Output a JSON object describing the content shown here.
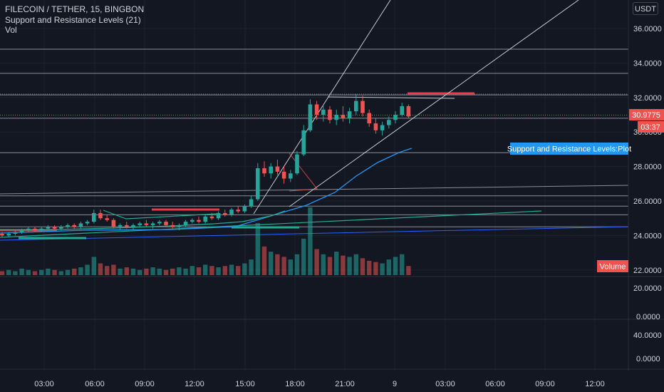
{
  "legend": {
    "symbol": "FILECOIN / TETHER, 15, BINGBON",
    "indicator": "Support and Resistance Levels (21)",
    "volume": "Vol"
  },
  "currency": "USDT",
  "colors": {
    "background": "#131722",
    "up": "#26a69a",
    "down": "#ef5350",
    "grid": "#1e222d",
    "text": "#d1d4dc",
    "level_line": "#b2b5be",
    "trend_line": "#c8cad2",
    "ma_blue": "#2196f3",
    "ma_teal": "#22ab94",
    "resistance_red": "#f23645",
    "support_green": "#4caf50"
  },
  "chart_data": {
    "type": "candlestick",
    "x_tick_labels": [
      "03:00",
      "06:00",
      "09:00",
      "12:00",
      "15:00",
      "18:00",
      "21:00",
      "9",
      "03:00",
      "06:00",
      "09:00",
      "12:00"
    ],
    "price_axis_ticks": [
      "36.0000",
      "34.0000",
      "32.0000",
      "30.0000",
      "28.0000",
      "26.0000",
      "24.0000",
      "22.0000"
    ],
    "oscillator_axis_ticks": [
      "20.0000",
      "0.0000"
    ],
    "oscillator2_axis_ticks": [
      "40.0000",
      "0.0000"
    ],
    "price_range": [
      21.6,
      37.4
    ],
    "last_price": "30.9775",
    "countdown": "03:37",
    "indicator_plot_label": "Support and Resistance Levels:Plot",
    "volume_label": "Volume",
    "horizontal_levels": [
      34.8,
      33.4,
      32.15,
      30.8,
      28.8,
      26.3,
      25.7,
      25.2,
      24.5
    ],
    "candles_ohlc": [
      [
        24.1,
        24.2,
        23.9,
        24.0
      ],
      [
        24.0,
        24.2,
        23.9,
        24.1
      ],
      [
        24.1,
        24.3,
        24.0,
        24.2
      ],
      [
        24.2,
        24.4,
        24.1,
        24.3
      ],
      [
        24.3,
        24.5,
        24.2,
        24.4
      ],
      [
        24.4,
        24.5,
        24.2,
        24.3
      ],
      [
        24.3,
        24.5,
        24.2,
        24.4
      ],
      [
        24.4,
        24.6,
        24.3,
        24.5
      ],
      [
        24.5,
        24.6,
        24.3,
        24.4
      ],
      [
        24.4,
        24.6,
        24.3,
        24.5
      ],
      [
        24.5,
        24.7,
        24.4,
        24.6
      ],
      [
        24.6,
        24.7,
        24.4,
        24.5
      ],
      [
        24.5,
        24.8,
        24.4,
        24.7
      ],
      [
        24.7,
        24.9,
        24.6,
        24.8
      ],
      [
        24.8,
        25.5,
        24.7,
        25.3
      ],
      [
        25.3,
        25.5,
        24.9,
        25.0
      ],
      [
        25.0,
        25.2,
        24.8,
        24.9
      ],
      [
        24.9,
        25.0,
        24.4,
        24.5
      ],
      [
        24.5,
        24.7,
        24.3,
        24.6
      ],
      [
        24.6,
        24.8,
        24.4,
        24.5
      ],
      [
        24.5,
        24.7,
        24.3,
        24.6
      ],
      [
        24.6,
        24.8,
        24.5,
        24.7
      ],
      [
        24.7,
        24.9,
        24.5,
        24.6
      ],
      [
        24.6,
        24.8,
        24.4,
        24.7
      ],
      [
        24.7,
        24.9,
        24.6,
        24.8
      ],
      [
        24.8,
        24.9,
        24.5,
        24.6
      ],
      [
        24.6,
        24.8,
        24.4,
        24.5
      ],
      [
        24.5,
        24.7,
        24.3,
        24.6
      ],
      [
        24.6,
        24.9,
        24.5,
        24.8
      ],
      [
        24.8,
        25.0,
        24.7,
        24.9
      ],
      [
        24.9,
        25.1,
        24.7,
        24.8
      ],
      [
        24.8,
        25.2,
        24.7,
        25.1
      ],
      [
        25.1,
        25.3,
        24.9,
        25.0
      ],
      [
        25.0,
        25.4,
        24.9,
        25.3
      ],
      [
        25.3,
        25.5,
        25.1,
        25.2
      ],
      [
        25.2,
        25.6,
        25.1,
        25.5
      ],
      [
        25.5,
        25.7,
        25.3,
        25.4
      ],
      [
        25.4,
        25.8,
        25.3,
        25.7
      ],
      [
        25.7,
        26.3,
        25.6,
        26.1
      ],
      [
        26.1,
        28.2,
        26.0,
        27.9
      ],
      [
        27.9,
        28.3,
        27.4,
        27.6
      ],
      [
        27.6,
        28.2,
        27.3,
        28.0
      ],
      [
        28.0,
        28.4,
        27.5,
        27.7
      ],
      [
        27.7,
        28.0,
        27.0,
        27.3
      ],
      [
        27.3,
        27.8,
        27.1,
        27.6
      ],
      [
        27.6,
        28.9,
        27.5,
        28.7
      ],
      [
        28.7,
        30.4,
        28.6,
        30.1
      ],
      [
        30.1,
        31.9,
        30.0,
        31.6
      ],
      [
        31.6,
        31.8,
        30.7,
        31.0
      ],
      [
        31.0,
        31.6,
        30.6,
        31.3
      ],
      [
        31.3,
        31.5,
        30.5,
        30.7
      ],
      [
        30.7,
        31.3,
        30.4,
        31.0
      ],
      [
        31.0,
        31.5,
        30.6,
        30.8
      ],
      [
        30.8,
        31.4,
        30.5,
        31.2
      ],
      [
        31.2,
        32.2,
        31.0,
        31.8
      ],
      [
        31.8,
        32.1,
        30.9,
        31.1
      ],
      [
        31.1,
        31.3,
        30.3,
        30.5
      ],
      [
        30.5,
        30.8,
        29.9,
        30.1
      ],
      [
        30.1,
        30.6,
        29.8,
        30.4
      ],
      [
        30.4,
        30.9,
        30.2,
        30.7
      ],
      [
        30.7,
        31.2,
        30.5,
        31.0
      ],
      [
        31.0,
        31.7,
        30.9,
        31.5
      ],
      [
        31.5,
        31.6,
        30.8,
        30.9
      ]
    ],
    "volumes": [
      3,
      4,
      3,
      5,
      4,
      3,
      4,
      5,
      4,
      3,
      4,
      5,
      6,
      8,
      14,
      9,
      7,
      8,
      5,
      6,
      5,
      4,
      5,
      6,
      5,
      4,
      5,
      6,
      5,
      7,
      6,
      8,
      7,
      6,
      7,
      8,
      7,
      9,
      12,
      40,
      22,
      18,
      16,
      14,
      12,
      16,
      28,
      52,
      20,
      16,
      14,
      18,
      15,
      14,
      16,
      13,
      11,
      10,
      9,
      12,
      14,
      16,
      7
    ]
  }
}
